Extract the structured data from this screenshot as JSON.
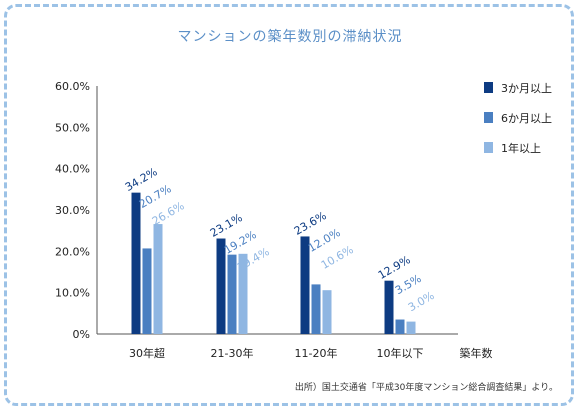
{
  "chart_data": {
    "type": "bar",
    "title": "マンションの築年数別の滞納状況",
    "xlabel": "築年数",
    "ylabel": "",
    "ylim": [
      0,
      60
    ],
    "yticks": [
      "0%",
      "10.0%",
      "20.0%",
      "30.0%",
      "40.0%",
      "50.0%",
      "60.0%"
    ],
    "categories": [
      "30年超",
      "21-30年",
      "11-20年",
      "10年以下"
    ],
    "series": [
      {
        "name": "3か月以上",
        "color": "#0d3b82",
        "values": [
          34.2,
          23.1,
          23.6,
          12.9
        ],
        "labels": [
          "34.2%",
          "23.1%",
          "23.6%",
          "12.9%"
        ]
      },
      {
        "name": "6か月以上",
        "color": "#4a7fc1",
        "values": [
          20.7,
          19.2,
          12.0,
          3.5
        ],
        "labels": [
          "20.7%",
          "19.2%",
          "12.0%",
          "3.5%"
        ]
      },
      {
        "name": "1年以上",
        "color": "#8fb6e2",
        "values": [
          26.6,
          19.4,
          10.6,
          3.0
        ],
        "labels": [
          "26.6%",
          "19.4%",
          "10.6%",
          "3.0%"
        ]
      }
    ],
    "legend_position": "top-right",
    "grid": false
  },
  "source_note": "出所）国土交通省「平成30年度マンション総合調査結果」より。"
}
